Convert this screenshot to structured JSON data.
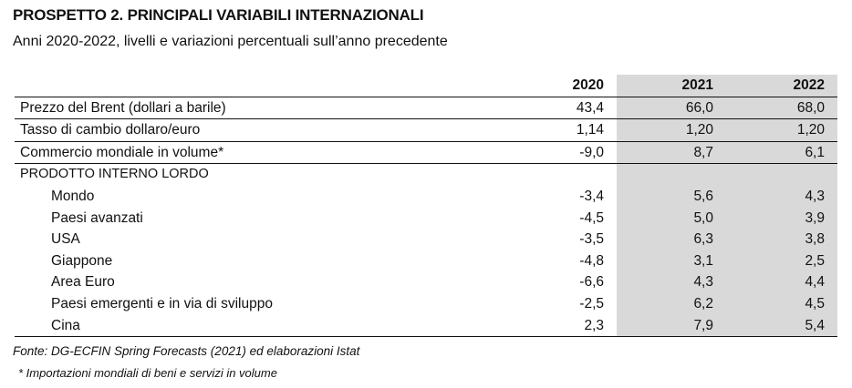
{
  "title": "PROSPETTO 2. PRINCIPALI VARIABILI INTERNAZIONALI",
  "subtitle": "Anni 2020-2022, livelli e variazioni percentuali sull’anno precedente",
  "table": {
    "columns": [
      "",
      "2020",
      "2021",
      "2022"
    ],
    "rows": [
      {
        "label": "Prezzo del Brent (dollari a barile)",
        "values": [
          "43,4",
          "66,0",
          "68,0"
        ]
      },
      {
        "label": "Tasso di cambio dollaro/euro",
        "values": [
          "1,14",
          "1,20",
          "1,20"
        ]
      },
      {
        "label": "Commercio mondiale in volume*",
        "values": [
          "-9,0",
          "8,7",
          "6,1"
        ]
      },
      {
        "label": "PRODOTTO INTERNO LORDO",
        "values": [
          "",
          "",
          ""
        ]
      },
      {
        "label": "Mondo",
        "values": [
          "-3,4",
          "5,6",
          "4,3"
        ]
      },
      {
        "label": "Paesi avanzati",
        "values": [
          "-4,5",
          "5,0",
          "3,9"
        ]
      },
      {
        "label": "USA",
        "values": [
          "-3,5",
          "6,3",
          "3,8"
        ]
      },
      {
        "label": "Giappone",
        "values": [
          "-4,8",
          "3,1",
          "2,5"
        ]
      },
      {
        "label": "Area Euro",
        "values": [
          "-6,6",
          "4,3",
          "4,4"
        ]
      },
      {
        "label": "Paesi emergenti e in via di sviluppo",
        "values": [
          "-2,5",
          "6,2",
          "4,5"
        ]
      },
      {
        "label": "Cina",
        "values": [
          "2,3",
          "7,9",
          "5,4"
        ]
      }
    ]
  },
  "footnotes": {
    "source": "Fonte: DG-ECFIN Spring Forecasts (2021) ed elaborazioni Istat",
    "note": "* Importazioni mondiali di beni e servizi in volume"
  }
}
